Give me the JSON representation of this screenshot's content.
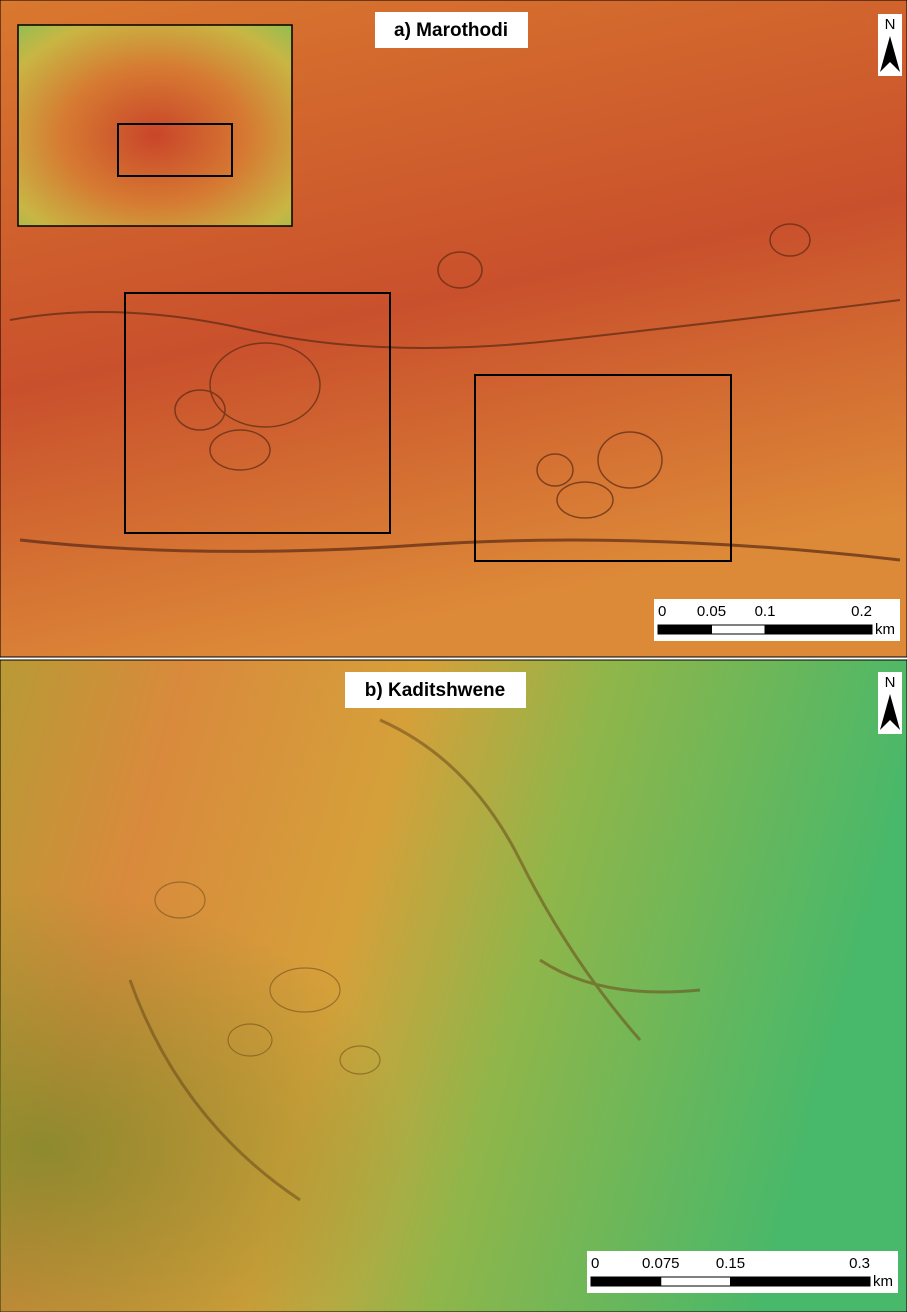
{
  "panels": [
    {
      "title": "a) Marothodi",
      "north": "N",
      "scale": {
        "ticks": [
          0,
          0.05,
          0.1,
          0.2
        ],
        "unit": "km"
      }
    },
    {
      "title": "b) Kaditshwene",
      "north": "N",
      "scale": {
        "ticks": [
          0,
          0.075,
          0.15,
          0.3
        ],
        "unit": "km"
      }
    }
  ]
}
